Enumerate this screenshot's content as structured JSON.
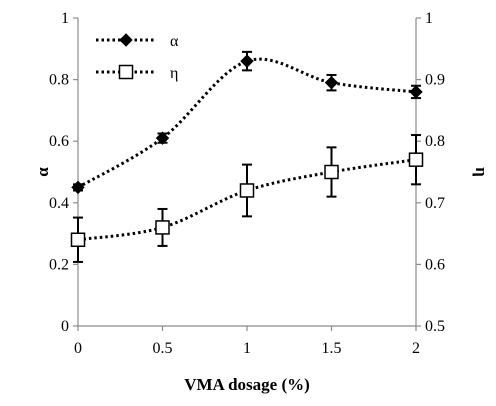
{
  "chart_data": {
    "type": "line",
    "title": "",
    "xlabel": "VMA dosage (%)",
    "ylabel": "α",
    "y2label": "η",
    "x": [
      0,
      0.5,
      1,
      1.5,
      2
    ],
    "xticks": [
      "0",
      "0.5",
      "1",
      "1.5",
      "2"
    ],
    "xlim": [
      0,
      2
    ],
    "ylim": [
      0,
      1
    ],
    "y2lim": [
      0.5,
      1
    ],
    "yticks": [
      "0",
      "0.2",
      "0.4",
      "0.6",
      "0.8",
      "1"
    ],
    "y2ticks": [
      "0.5",
      "0.6",
      "0.7",
      "0.8",
      "0.9",
      "1"
    ],
    "grid": false,
    "legend_position": "top-left",
    "series": [
      {
        "name": "α",
        "axis": "left",
        "marker": "filled-diamond",
        "line": "dotted-smooth",
        "color": "#000000",
        "values": [
          0.45,
          0.61,
          0.86,
          0.79,
          0.76
        ],
        "errors": [
          0.01,
          0.015,
          0.03,
          0.025,
          0.02
        ]
      },
      {
        "name": "η",
        "axis": "right",
        "marker": "open-square",
        "line": "dotted-smooth",
        "color": "#000000",
        "values": [
          0.64,
          0.66,
          0.72,
          0.75,
          0.77
        ],
        "errors": [
          0.036,
          0.03,
          0.042,
          0.04,
          0.04
        ]
      }
    ]
  }
}
